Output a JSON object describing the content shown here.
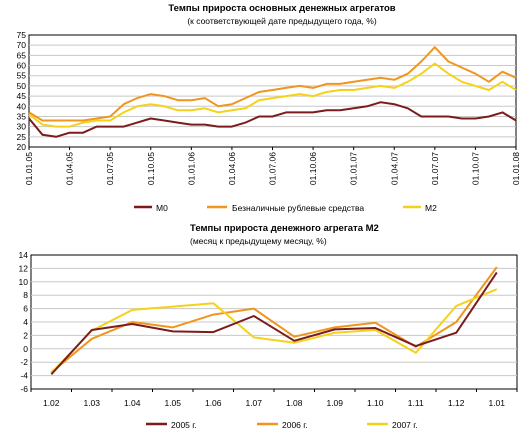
{
  "chart_data": [
    {
      "type": "line",
      "title": "Темпы прироста основных денежных агрегатов",
      "subtitle": "(к соответствующей дате предыдущего года, %)",
      "y_ticks": [
        "20",
        "25",
        "30",
        "35",
        "40",
        "45",
        "50",
        "55",
        "60",
        "65",
        "70",
        "75"
      ],
      "ylim": [
        20,
        75
      ],
      "x_ticks": [
        "01.01.05",
        "01.04.05",
        "01.07.05",
        "01.10.05",
        "01.01.06",
        "01.04.06",
        "01.07.06",
        "01.10.06",
        "01.01.07",
        "01.04.07",
        "01.07.07",
        "01.10.07",
        "01.01.08"
      ],
      "xlim": [
        0,
        36
      ],
      "grid": "horizontal",
      "legend_position": "bottom",
      "series": [
        {
          "name": "M0",
          "color": "#7b1c1c",
          "x": [
            0,
            1,
            2,
            3,
            4,
            5,
            6,
            7,
            8,
            9,
            10,
            11,
            12,
            13,
            14,
            15,
            16,
            17,
            18,
            19,
            20,
            21,
            22,
            23,
            24,
            25,
            26,
            27,
            28,
            29,
            30,
            31,
            32,
            33,
            34,
            35,
            36
          ],
          "values": [
            34,
            26,
            25,
            27,
            27,
            30,
            30,
            30,
            32,
            34,
            33,
            32,
            31,
            31,
            30,
            30,
            32,
            35,
            35,
            37,
            37,
            37,
            38,
            38,
            39,
            40,
            42,
            41,
            39,
            35,
            35,
            35,
            34,
            34,
            35,
            37,
            33
          ]
        },
        {
          "name": "Безналичные рублевые средства",
          "color": "#f0961e",
          "x": [
            0,
            1,
            2,
            3,
            4,
            5,
            6,
            7,
            8,
            9,
            10,
            11,
            12,
            13,
            14,
            15,
            16,
            17,
            18,
            19,
            20,
            21,
            22,
            23,
            24,
            25,
            26,
            27,
            28,
            29,
            30,
            31,
            32,
            33,
            34,
            35,
            36
          ],
          "values": [
            37,
            33,
            33,
            33,
            33,
            34,
            35,
            41,
            44,
            46,
            45,
            43,
            43,
            44,
            40,
            41,
            44,
            47,
            48,
            49,
            50,
            49,
            51,
            51,
            52,
            53,
            54,
            53,
            56,
            62,
            69,
            62,
            59,
            56,
            52,
            57,
            54
          ]
        },
        {
          "name": "M2",
          "color": "#f5d21a",
          "x": [
            0,
            1,
            2,
            3,
            4,
            5,
            6,
            7,
            8,
            9,
            10,
            11,
            12,
            13,
            14,
            15,
            16,
            17,
            18,
            19,
            20,
            21,
            22,
            23,
            24,
            25,
            26,
            27,
            28,
            29,
            30,
            31,
            32,
            33,
            34,
            35,
            36
          ],
          "values": [
            36,
            31,
            30,
            30,
            32,
            33,
            33,
            37,
            40,
            41,
            40,
            38,
            38,
            39,
            37,
            38,
            39,
            43,
            44,
            45,
            46,
            45,
            47,
            48,
            48,
            49,
            50,
            49,
            52,
            56,
            61,
            56,
            52,
            50,
            48,
            52,
            48
          ]
        }
      ]
    },
    {
      "type": "line",
      "title": "Темпы прироста денежного агрегата М2",
      "subtitle": "(месяц к предыдущему месяцу, %)",
      "categories": [
        "1.02",
        "1.03",
        "1.04",
        "1.05",
        "1.06",
        "1.07",
        "1.08",
        "1.09",
        "1.10",
        "1.11",
        "1.12",
        "1.01"
      ],
      "y_ticks": [
        "-6",
        "-4",
        "-2",
        "0",
        "2",
        "4",
        "6",
        "8",
        "10",
        "12",
        "14"
      ],
      "ylim": [
        -6,
        14
      ],
      "grid": "horizontal",
      "legend_position": "bottom",
      "series": [
        {
          "name": "2005 г.",
          "color": "#7b1c1c",
          "values": [
            -3.8,
            2.8,
            3.7,
            2.6,
            2.5,
            4.9,
            1.2,
            2.9,
            3.1,
            0.4,
            2.4,
            11.4
          ]
        },
        {
          "name": "2006 г.",
          "color": "#f0961e",
          "values": [
            -3.5,
            1.5,
            4.0,
            3.2,
            5.1,
            6.0,
            1.8,
            3.2,
            3.9,
            0.3,
            4.0,
            12.2
          ]
        },
        {
          "name": "2007 г.",
          "color": "#f5d21a",
          "values": [
            -3.6,
            2.7,
            5.8,
            6.3,
            6.8,
            1.7,
            0.9,
            2.4,
            2.8,
            -0.6,
            6.4,
            8.9
          ]
        }
      ]
    }
  ]
}
